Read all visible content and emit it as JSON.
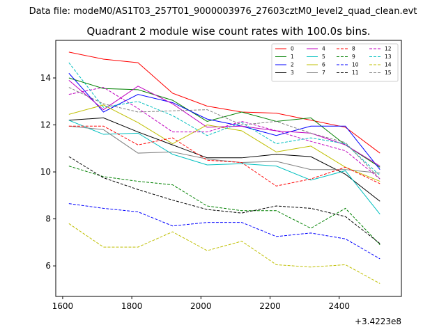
{
  "figure": {
    "suptitle": "Data file: modeM0/AS1T03_257T01_9000003976_27603cztM0_level2_quad_clean.evt"
  },
  "chart_data": {
    "type": "line",
    "title": "Quadrant 2 module wise count rates with 100.0s bins.",
    "xlabel": "",
    "ylabel": "",
    "x_offset_label": "+3.4223e8",
    "xlim": [
      1580,
      2580
    ],
    "ylim": [
      4.7,
      15.6
    ],
    "xticks": [
      1600,
      1800,
      2000,
      2200,
      2400
    ],
    "yticks": [
      6,
      8,
      10,
      12,
      14
    ],
    "grid": false,
    "legend": {
      "position": "top-right",
      "columns": 4
    },
    "x": [
      1618,
      1718,
      1818,
      1918,
      2018,
      2118,
      2218,
      2318,
      2418,
      2518
    ],
    "series": [
      {
        "name": "0",
        "color": "#ff0000",
        "dash": "solid",
        "values": [
          15.1,
          14.8,
          14.65,
          13.35,
          12.8,
          12.55,
          12.5,
          12.2,
          11.9,
          10.8
        ]
      },
      {
        "name": "1",
        "color": "#008000",
        "dash": "solid",
        "values": [
          14.0,
          13.55,
          13.5,
          13.05,
          12.15,
          12.55,
          12.15,
          12.3,
          11.15,
          10.2
        ]
      },
      {
        "name": "2",
        "color": "#0000ff",
        "dash": "solid",
        "values": [
          14.2,
          12.55,
          13.3,
          12.95,
          12.25,
          11.95,
          11.55,
          11.95,
          11.95,
          10.1
        ]
      },
      {
        "name": "3",
        "color": "#000000",
        "dash": "solid",
        "values": [
          12.2,
          12.3,
          11.7,
          11.15,
          10.6,
          10.6,
          10.75,
          10.65,
          9.9,
          8.75
        ]
      },
      {
        "name": "4",
        "color": "#bf00bf",
        "dash": "solid",
        "values": [
          13.9,
          12.65,
          13.65,
          12.9,
          11.9,
          11.95,
          11.75,
          11.65,
          11.15,
          10.25
        ]
      },
      {
        "name": "5",
        "color": "#00bfbf",
        "dash": "solid",
        "values": [
          12.2,
          11.6,
          11.65,
          10.75,
          10.3,
          10.35,
          10.25,
          9.65,
          10.05,
          8.2
        ]
      },
      {
        "name": "6",
        "color": "#bfbf00",
        "dash": "solid",
        "values": [
          12.45,
          12.85,
          12.1,
          11.2,
          12.0,
          11.75,
          10.85,
          11.1,
          10.2,
          9.6
        ]
      },
      {
        "name": "7",
        "color": "#808080",
        "dash": "solid",
        "values": [
          11.95,
          11.8,
          10.8,
          10.85,
          10.55,
          10.4,
          10.45,
          10.1,
          10.1,
          9.95
        ]
      },
      {
        "name": "8",
        "color": "#ff0000",
        "dash": "dashed",
        "values": [
          11.95,
          11.95,
          11.15,
          11.45,
          10.5,
          10.4,
          9.4,
          9.7,
          10.2,
          9.5
        ]
      },
      {
        "name": "9",
        "color": "#008000",
        "dash": "dashed",
        "values": [
          10.25,
          9.8,
          9.6,
          9.45,
          8.55,
          8.35,
          8.35,
          7.6,
          8.45,
          6.9
        ]
      },
      {
        "name": "10",
        "color": "#0000ff",
        "dash": "dashed",
        "values": [
          8.65,
          8.45,
          8.3,
          7.7,
          7.85,
          7.85,
          7.25,
          7.4,
          7.15,
          6.3
        ]
      },
      {
        "name": "11",
        "color": "#000000",
        "dash": "dashed",
        "values": [
          10.65,
          9.75,
          9.25,
          8.8,
          8.4,
          8.25,
          8.55,
          8.45,
          8.1,
          6.95
        ]
      },
      {
        "name": "12",
        "color": "#bf00bf",
        "dash": "dashed",
        "values": [
          13.3,
          13.6,
          12.7,
          11.7,
          11.7,
          12.15,
          11.75,
          11.3,
          10.9,
          9.7
        ]
      },
      {
        "name": "13",
        "color": "#00bfbf",
        "dash": "dashed",
        "values": [
          14.65,
          12.75,
          13.0,
          12.4,
          11.55,
          12.1,
          11.2,
          11.45,
          11.2,
          9.85
        ]
      },
      {
        "name": "14",
        "color": "#bfbf00",
        "dash": "dashed",
        "values": [
          7.8,
          6.8,
          6.8,
          7.45,
          6.65,
          7.05,
          6.05,
          5.95,
          6.05,
          5.25
        ]
      },
      {
        "name": "15",
        "color": "#808080",
        "dash": "dashed",
        "values": [
          13.6,
          12.9,
          12.55,
          12.6,
          12.65,
          12.0,
          12.15,
          11.65,
          11.25,
          9.7
        ]
      }
    ]
  }
}
